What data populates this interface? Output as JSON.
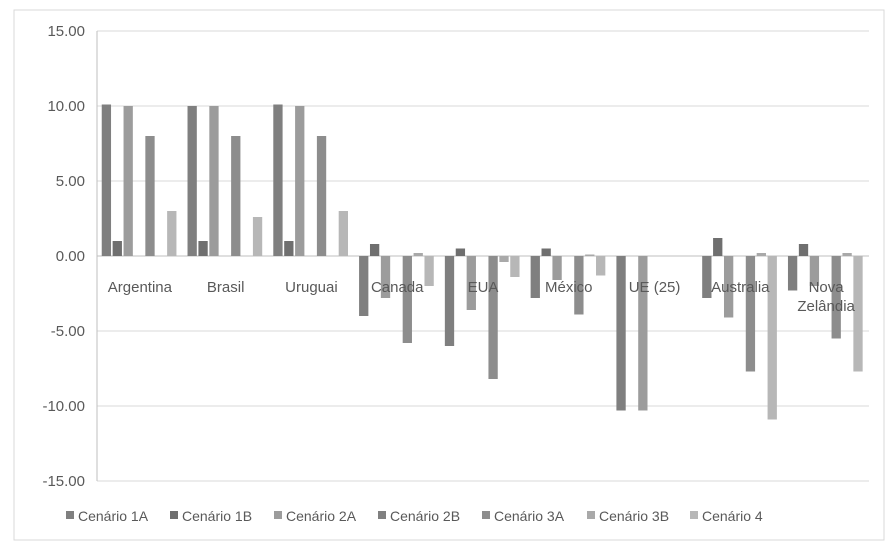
{
  "chart_data": {
    "type": "bar",
    "categories": [
      "Argentina",
      "Brasil",
      "Uruguai",
      "Canada",
      "EUA",
      "México",
      "UE (25)",
      "Australia",
      "Nova Zelândia"
    ],
    "category_lines": [
      [
        "Argentina"
      ],
      [
        "Brasil"
      ],
      [
        "Uruguai"
      ],
      [
        "Canada"
      ],
      [
        "EUA"
      ],
      [
        "México"
      ],
      [
        "UE (25)"
      ],
      [
        "Australia"
      ],
      [
        "Nova",
        "Zelândia"
      ]
    ],
    "series": [
      {
        "name": "Cenário 1A",
        "color": "#7f7f7f",
        "values": [
          10.1,
          10.0,
          10.1,
          -4.0,
          -6.0,
          -2.8,
          -10.3,
          -2.8,
          -2.3
        ]
      },
      {
        "name": "Cenário 1B",
        "color": "#6f6f6f",
        "values": [
          1.0,
          1.0,
          1.0,
          0.8,
          0.5,
          0.5,
          0.0,
          1.2,
          0.8
        ]
      },
      {
        "name": "Cenário 2A",
        "color": "#9c9c9c",
        "values": [
          10.0,
          10.0,
          10.0,
          -2.8,
          -3.6,
          -1.6,
          -10.3,
          -4.1,
          -2.0
        ]
      },
      {
        "name": "Cenário 2B",
        "color": "#808080",
        "values": [
          0.0,
          0.0,
          0.0,
          0.0,
          0.0,
          0.0,
          0.0,
          0.0,
          0.0
        ]
      },
      {
        "name": "Cenário 3A",
        "color": "#8d8d8d",
        "values": [
          8.0,
          8.0,
          8.0,
          -5.8,
          -8.2,
          -3.9,
          0.0,
          -7.7,
          -5.5
        ]
      },
      {
        "name": "Cenário 3B",
        "color": "#a9a9a9",
        "values": [
          0.0,
          0.0,
          0.0,
          0.2,
          -0.4,
          0.1,
          0.0,
          0.2,
          0.2
        ]
      },
      {
        "name": "Cenário 4",
        "color": "#b7b7b7",
        "values": [
          3.0,
          2.6,
          3.0,
          -2.0,
          -1.4,
          -1.3,
          0.0,
          -10.9,
          -7.7
        ]
      }
    ],
    "yticks": [
      "15.00",
      "10.00",
      "5.00",
      "0.00",
      "-5.00",
      "-10.00",
      "-15.00"
    ],
    "ylim": [
      -15,
      15
    ],
    "grid": true,
    "legend_position": "bottom"
  }
}
